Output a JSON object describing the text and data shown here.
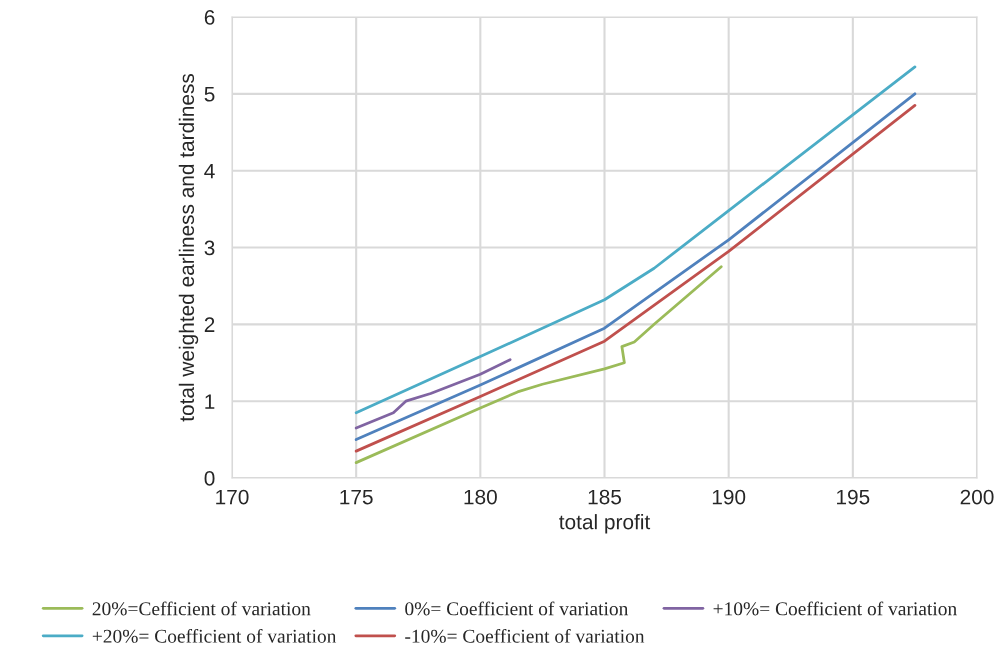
{
  "chart_data": {
    "type": "line",
    "xlabel": "total profit",
    "ylabel": "total weighted earliness and tardiness",
    "xlim": [
      170,
      200
    ],
    "xticks": [
      170,
      175,
      180,
      185,
      190,
      195,
      200
    ],
    "ylim": [
      0,
      6
    ],
    "yticks": [
      0,
      1,
      2,
      3,
      4,
      5,
      6
    ],
    "grid": true,
    "legend": "bottom",
    "marker": "none",
    "line_style": "solid",
    "series": [
      {
        "name": "20%=Cefficient of variation",
        "color": "#9bbb59",
        "x": [
          175,
          180,
          181.5,
          182.5,
          185,
          185.8,
          185.7,
          186.2,
          187,
          189.7
        ],
        "values": [
          0.2,
          0.91,
          1.12,
          1.22,
          1.42,
          1.5,
          1.71,
          1.77,
          2.0,
          2.75
        ]
      },
      {
        "name": "+20%= Coefficient of variation",
        "color": "#4bacc6",
        "x": [
          175,
          180,
          185,
          187,
          190,
          197.5
        ],
        "values": [
          0.85,
          1.58,
          2.32,
          2.73,
          3.48,
          5.35
        ]
      },
      {
        "name": "0%= Coefficient of variation",
        "color": "#4f81bd",
        "x": [
          175,
          180,
          185,
          190,
          197.5
        ],
        "values": [
          0.5,
          1.21,
          1.95,
          3.1,
          5.0
        ]
      },
      {
        "name": "-10%= Coefficient of variation",
        "color": "#c0504d",
        "x": [
          175,
          180,
          185,
          190,
          197.5
        ],
        "values": [
          0.35,
          1.06,
          1.78,
          2.95,
          4.85
        ]
      },
      {
        "name": "+10%= Coefficient of variation",
        "color": "#8064a2",
        "x": [
          175,
          176.5,
          177,
          178,
          180,
          181.2
        ],
        "values": [
          0.65,
          0.85,
          1.0,
          1.1,
          1.35,
          1.54
        ]
      }
    ]
  }
}
